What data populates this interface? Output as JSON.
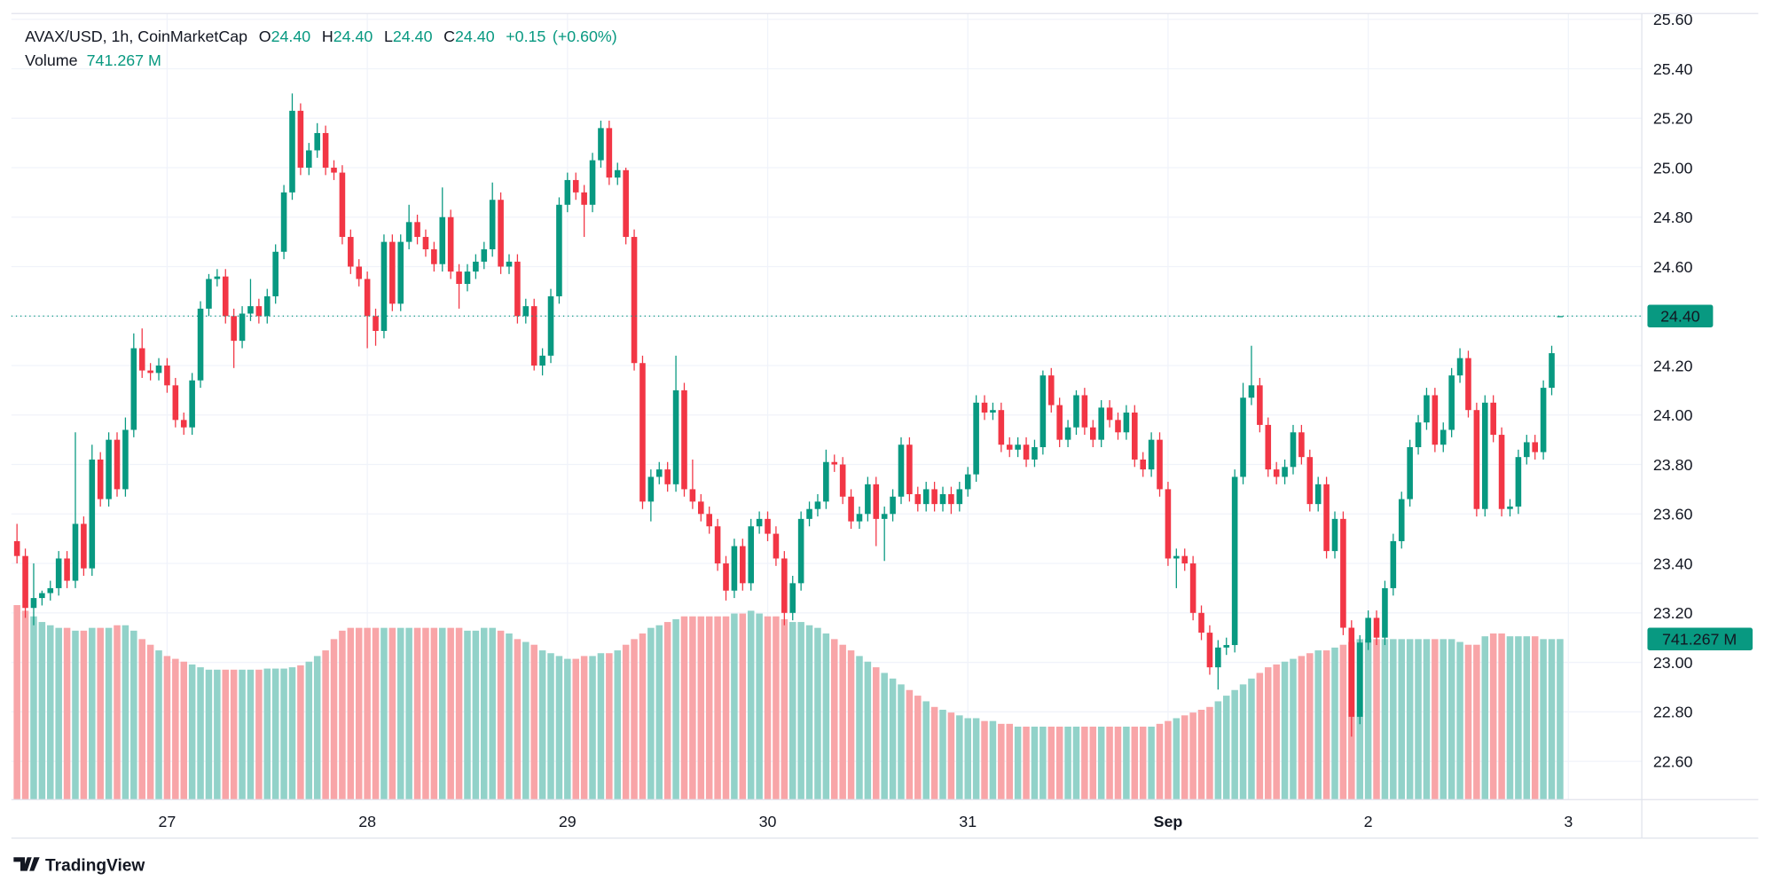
{
  "chart_data": {
    "type": "candlestick",
    "title": "AVAX/USD, 1h, CoinMarketCap",
    "legend": {
      "open_label": "O",
      "open": {
        "value": 24.4,
        "label": "24.40"
      },
      "high_label": "H",
      "high": {
        "value": 24.4,
        "label": "24.40"
      },
      "low_label": "L",
      "low": {
        "value": 24.4,
        "label": "24.40"
      },
      "close_label": "C",
      "close": {
        "value": 24.4,
        "label": "24.40"
      },
      "change": {
        "value": 0.15,
        "label": "+0.15"
      },
      "change_percent": {
        "value": 0.6,
        "label": "(+0.60%)"
      }
    },
    "volume_label": "Volume",
    "volume_value": {
      "value": 741.267,
      "label": "741.267 M"
    },
    "last_price": {
      "value": 24.4,
      "label": "24.40"
    },
    "open": [
      23.49,
      23.43,
      23.22,
      23.26,
      23.28,
      23.3,
      23.42,
      23.33,
      23.56,
      23.38,
      23.82,
      23.66,
      23.9,
      23.7,
      23.94,
      24.27,
      24.18,
      24.17,
      24.2,
      24.12,
      23.98,
      23.95,
      24.14,
      24.43,
      24.55,
      24.56,
      24.4,
      24.3,
      24.41,
      24.44,
      24.4,
      24.48,
      24.66,
      24.9,
      25.23,
      25.0,
      25.07,
      25.14,
      25.0,
      24.98,
      24.72,
      24.6,
      24.55,
      24.4,
      24.34,
      24.7,
      24.45,
      24.7,
      24.78,
      24.72,
      24.67,
      24.61,
      24.8,
      24.58,
      24.53,
      24.58,
      24.62,
      24.67,
      24.87,
      24.6,
      24.62,
      24.4,
      24.44,
      24.2,
      24.24,
      24.48,
      24.85,
      24.95,
      24.9,
      24.85,
      25.03,
      25.16,
      24.96,
      24.99,
      24.72,
      24.21,
      23.65,
      23.75,
      23.78,
      23.72,
      24.1,
      23.7,
      23.65,
      23.6,
      23.55,
      23.4,
      23.29,
      23.47,
      23.32,
      23.55,
      23.58,
      23.52,
      23.42,
      23.2,
      23.32,
      23.58,
      23.62,
      23.65,
      23.81,
      23.8,
      23.67,
      23.57,
      23.6,
      23.72,
      23.58,
      23.6,
      23.67,
      23.88,
      23.68,
      23.64,
      23.7,
      23.64,
      23.68,
      23.64,
      23.7,
      23.76,
      24.05,
      24.01,
      24.02,
      23.88,
      23.86,
      23.88,
      23.82,
      23.87,
      24.16,
      24.04,
      23.9,
      23.95,
      24.08,
      23.95,
      23.9,
      24.03,
      23.98,
      23.93,
      24.01,
      23.82,
      23.78,
      23.9,
      23.7,
      23.42,
      23.43,
      23.4,
      23.2,
      23.12,
      22.98,
      23.06,
      23.07,
      23.75,
      24.07,
      24.12,
      23.96,
      23.78,
      23.75,
      23.79,
      23.93,
      23.83,
      23.64,
      23.72,
      23.45,
      23.58,
      23.14,
      22.78,
      23.08,
      23.18,
      23.1,
      23.3,
      23.49,
      23.66,
      23.87,
      23.97,
      24.08,
      23.88,
      23.94,
      24.16,
      24.23,
      24.02,
      23.62,
      24.05,
      23.92,
      23.62,
      23.63,
      23.83,
      23.89,
      23.85,
      24.11,
      24.4
    ],
    "high": [
      23.56,
      23.46,
      23.4,
      23.29,
      23.33,
      23.45,
      23.45,
      23.93,
      23.59,
      23.88,
      23.85,
      23.93,
      23.93,
      23.99,
      24.33,
      24.35,
      24.21,
      24.23,
      24.23,
      24.15,
      24.01,
      24.17,
      24.46,
      24.57,
      24.59,
      24.59,
      24.43,
      24.44,
      24.55,
      24.47,
      24.51,
      24.69,
      24.93,
      25.3,
      25.26,
      25.1,
      25.18,
      25.17,
      25.03,
      25.01,
      24.75,
      24.63,
      24.58,
      24.43,
      24.73,
      24.73,
      24.73,
      24.85,
      24.81,
      24.75,
      24.7,
      24.92,
      24.83,
      24.61,
      24.61,
      24.65,
      24.7,
      24.94,
      24.9,
      24.65,
      24.65,
      24.47,
      24.47,
      24.27,
      24.51,
      24.88,
      24.98,
      24.98,
      24.93,
      25.06,
      25.19,
      25.19,
      25.02,
      25.0,
      24.75,
      24.24,
      23.78,
      23.81,
      23.81,
      24.24,
      24.13,
      23.82,
      23.68,
      23.63,
      23.58,
      23.43,
      23.5,
      23.5,
      23.58,
      23.61,
      23.61,
      23.55,
      23.45,
      23.35,
      23.61,
      23.65,
      23.68,
      23.86,
      23.84,
      23.83,
      23.7,
      23.63,
      23.75,
      23.75,
      23.63,
      23.7,
      23.91,
      23.91,
      23.71,
      23.73,
      23.73,
      23.71,
      23.71,
      23.73,
      23.79,
      24.08,
      24.08,
      24.05,
      24.05,
      23.91,
      23.91,
      23.91,
      23.9,
      24.18,
      24.19,
      24.07,
      23.98,
      24.1,
      24.11,
      23.98,
      24.06,
      24.06,
      24.01,
      24.04,
      24.04,
      23.85,
      23.93,
      23.93,
      23.73,
      23.46,
      23.46,
      23.43,
      23.23,
      23.15,
      23.09,
      23.1,
      23.78,
      24.13,
      24.28,
      24.15,
      23.99,
      23.81,
      23.82,
      23.96,
      23.96,
      23.86,
      23.75,
      23.75,
      23.61,
      23.61,
      23.17,
      23.11,
      23.21,
      23.21,
      23.33,
      23.52,
      23.69,
      23.9,
      24.0,
      24.11,
      24.11,
      23.97,
      24.19,
      24.27,
      24.26,
      24.05,
      24.08,
      24.08,
      23.95,
      23.66,
      23.86,
      23.92,
      23.92,
      24.14,
      24.28,
      24.4
    ],
    "low": [
      23.4,
      23.18,
      23.15,
      23.23,
      23.25,
      23.27,
      23.3,
      23.3,
      23.35,
      23.35,
      23.63,
      23.63,
      23.67,
      23.67,
      23.91,
      24.15,
      24.14,
      24.14,
      24.09,
      23.95,
      23.92,
      23.92,
      24.11,
      24.4,
      24.52,
      24.37,
      24.19,
      24.27,
      24.38,
      24.37,
      24.37,
      24.45,
      24.63,
      24.87,
      24.97,
      24.97,
      25.04,
      24.97,
      24.95,
      24.69,
      24.57,
      24.52,
      24.27,
      24.28,
      24.31,
      24.42,
      24.42,
      24.67,
      24.69,
      24.64,
      24.58,
      24.58,
      24.55,
      24.43,
      24.5,
      24.55,
      24.59,
      24.64,
      24.57,
      24.57,
      24.37,
      24.37,
      24.18,
      24.16,
      24.21,
      24.45,
      24.82,
      24.87,
      24.72,
      24.82,
      25.0,
      24.93,
      24.93,
      24.69,
      24.18,
      23.62,
      23.57,
      23.72,
      23.69,
      23.69,
      23.67,
      23.62,
      23.57,
      23.52,
      23.37,
      23.25,
      23.26,
      23.29,
      23.29,
      23.52,
      23.49,
      23.39,
      23.15,
      23.17,
      23.29,
      23.55,
      23.59,
      23.62,
      23.77,
      23.64,
      23.54,
      23.54,
      23.57,
      23.47,
      23.41,
      23.57,
      23.64,
      23.65,
      23.61,
      23.61,
      23.61,
      23.61,
      23.6,
      23.61,
      23.67,
      23.73,
      23.98,
      23.98,
      23.85,
      23.83,
      23.83,
      23.79,
      23.79,
      23.84,
      24.01,
      23.87,
      23.87,
      23.92,
      23.92,
      23.87,
      23.87,
      23.95,
      23.9,
      23.9,
      23.79,
      23.75,
      23.75,
      23.67,
      23.39,
      23.3,
      23.37,
      23.17,
      23.09,
      22.95,
      22.89,
      23.03,
      23.04,
      23.72,
      24.04,
      23.93,
      23.75,
      23.72,
      23.72,
      23.76,
      23.8,
      23.61,
      23.61,
      23.42,
      23.42,
      23.11,
      22.7,
      22.75,
      23.05,
      23.07,
      23.07,
      23.27,
      23.46,
      23.63,
      23.84,
      23.94,
      23.85,
      23.85,
      23.91,
      24.13,
      23.99,
      23.59,
      23.59,
      23.89,
      23.59,
      23.59,
      23.6,
      23.8,
      23.82,
      23.82,
      24.08,
      24.4
    ],
    "close": [
      23.43,
      23.22,
      23.26,
      23.28,
      23.3,
      23.42,
      23.33,
      23.56,
      23.38,
      23.82,
      23.66,
      23.9,
      23.7,
      23.94,
      24.27,
      24.18,
      24.17,
      24.2,
      24.12,
      23.98,
      23.95,
      24.14,
      24.43,
      24.55,
      24.56,
      24.4,
      24.3,
      24.41,
      24.44,
      24.4,
      24.48,
      24.66,
      24.9,
      25.23,
      25.0,
      25.07,
      25.14,
      25.0,
      24.98,
      24.72,
      24.6,
      24.55,
      24.4,
      24.34,
      24.7,
      24.45,
      24.7,
      24.78,
      24.72,
      24.67,
      24.61,
      24.8,
      24.58,
      24.53,
      24.58,
      24.62,
      24.67,
      24.87,
      24.6,
      24.62,
      24.4,
      24.44,
      24.2,
      24.24,
      24.48,
      24.85,
      24.95,
      24.9,
      24.85,
      25.03,
      25.16,
      24.96,
      24.99,
      24.72,
      24.21,
      23.65,
      23.75,
      23.78,
      23.72,
      24.1,
      23.7,
      23.65,
      23.6,
      23.55,
      23.4,
      23.29,
      23.47,
      23.32,
      23.55,
      23.58,
      23.52,
      23.42,
      23.2,
      23.32,
      23.58,
      23.62,
      23.65,
      23.81,
      23.8,
      23.67,
      23.57,
      23.6,
      23.72,
      23.58,
      23.6,
      23.67,
      23.88,
      23.68,
      23.64,
      23.7,
      23.64,
      23.68,
      23.64,
      23.7,
      23.76,
      24.05,
      24.01,
      24.02,
      23.88,
      23.86,
      23.88,
      23.82,
      23.87,
      24.16,
      24.04,
      23.9,
      23.95,
      24.08,
      23.95,
      23.9,
      24.03,
      23.98,
      23.93,
      24.01,
      23.82,
      23.78,
      23.9,
      23.7,
      23.42,
      23.43,
      23.4,
      23.2,
      23.12,
      22.98,
      23.06,
      23.07,
      23.75,
      24.07,
      24.12,
      23.96,
      23.78,
      23.75,
      23.79,
      23.93,
      23.83,
      23.64,
      23.72,
      23.45,
      23.58,
      23.14,
      22.78,
      23.08,
      23.18,
      23.1,
      23.3,
      23.49,
      23.66,
      23.87,
      23.97,
      24.08,
      23.88,
      23.94,
      24.16,
      24.23,
      24.02,
      23.62,
      24.05,
      23.92,
      23.62,
      23.63,
      23.83,
      23.89,
      23.85,
      24.11,
      24.25,
      24.4
    ],
    "volume": [
      898,
      872,
      846,
      820,
      805,
      793,
      793,
      780,
      780,
      793,
      793,
      793,
      805,
      805,
      780,
      741,
      715,
      689,
      663,
      650,
      637,
      624,
      611,
      600,
      600,
      600,
      600,
      600,
      600,
      600,
      605,
      605,
      605,
      611,
      620,
      637,
      663,
      689,
      741,
      780,
      793,
      793,
      793,
      793,
      793,
      793,
      793,
      793,
      793,
      793,
      793,
      793,
      793,
      793,
      780,
      780,
      793,
      793,
      780,
      767,
      741,
      728,
      715,
      689,
      676,
      663,
      650,
      650,
      663,
      663,
      676,
      676,
      689,
      715,
      741,
      767,
      793,
      805,
      820,
      833,
      846,
      846,
      846,
      846,
      846,
      846,
      859,
      859,
      872,
      859,
      846,
      846,
      833,
      820,
      820,
      805,
      793,
      767,
      741,
      715,
      689,
      663,
      637,
      611,
      585,
      559,
      532,
      506,
      480,
      454,
      428,
      415,
      402,
      389,
      376,
      376,
      363,
      363,
      350,
      350,
      337,
      337,
      337,
      337,
      337,
      337,
      337,
      337,
      337,
      337,
      337,
      337,
      337,
      337,
      337,
      337,
      337,
      350,
      363,
      376,
      389,
      402,
      415,
      428,
      454,
      480,
      506,
      532,
      559,
      585,
      611,
      624,
      637,
      650,
      663,
      676,
      689,
      689,
      702,
      715,
      728,
      741,
      741,
      741,
      741,
      741,
      741,
      741,
      741,
      741,
      741,
      741,
      741,
      728,
      715,
      715,
      754,
      767,
      767,
      754,
      754,
      754,
      754,
      741,
      741,
      741.267
    ],
    "up_color": "#089981",
    "down_color": "#f23645",
    "volume_up_color": "#92d2c9",
    "volume_down_color": "#f8a5a8",
    "ylim": [
      22.445,
      25.623
    ],
    "yticks": [
      {
        "value": 25.6,
        "label": "25.60"
      },
      {
        "value": 25.4,
        "label": "25.40"
      },
      {
        "value": 25.2,
        "label": "25.20"
      },
      {
        "value": 25,
        "label": "25.00"
      },
      {
        "value": 24.8,
        "label": "24.80"
      },
      {
        "value": 24.6,
        "label": "24.60"
      },
      {
        "value": 24.4,
        "label": "24.40"
      },
      {
        "value": 24.2,
        "label": "24.20"
      },
      {
        "value": 24,
        "label": "24.00"
      },
      {
        "value": 23.8,
        "label": "23.80"
      },
      {
        "value": 23.6,
        "label": "23.60"
      },
      {
        "value": 23.4,
        "label": "23.40"
      },
      {
        "value": 23.2,
        "label": "23.20"
      },
      {
        "value": 23,
        "label": "23.00"
      },
      {
        "value": 22.8,
        "label": "22.80"
      },
      {
        "value": 22.6,
        "label": "22.60"
      }
    ],
    "xlim": [
      -0.5,
      194.8
    ],
    "xticks": [
      {
        "value": 18,
        "label": "27"
      },
      {
        "value": 42,
        "label": "28"
      },
      {
        "value": 66,
        "label": "29"
      },
      {
        "value": 90,
        "label": "30"
      },
      {
        "value": 114,
        "label": "31"
      },
      {
        "value": 138,
        "label": "Sep"
      },
      {
        "value": 162,
        "label": "2"
      },
      {
        "value": 186,
        "label": "3"
      }
    ],
    "grid": true,
    "branding": "TradingView"
  }
}
